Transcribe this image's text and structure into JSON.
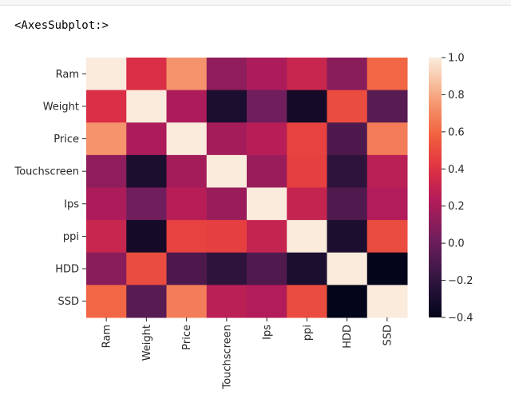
{
  "cell_output": "<AxesSubplot:>",
  "chart_data": {
    "type": "heatmap",
    "labels": [
      "Ram",
      "Weight",
      "Price",
      "Touchscreen",
      "Ips",
      "ppi",
      "HDD",
      "SSD"
    ],
    "matrix": [
      [
        1.0,
        0.38,
        0.74,
        0.12,
        0.21,
        0.31,
        0.1,
        0.6
      ],
      [
        0.38,
        1.0,
        0.21,
        -0.29,
        0.02,
        -0.32,
        0.51,
        -0.06
      ],
      [
        0.74,
        0.21,
        1.0,
        0.19,
        0.25,
        0.47,
        -0.1,
        0.67
      ],
      [
        0.12,
        -0.29,
        0.19,
        1.0,
        0.15,
        0.46,
        -0.21,
        0.26
      ],
      [
        0.21,
        0.02,
        0.25,
        0.15,
        1.0,
        0.3,
        -0.09,
        0.23
      ],
      [
        0.31,
        -0.32,
        0.47,
        0.46,
        0.3,
        1.0,
        -0.29,
        0.51
      ],
      [
        0.1,
        0.51,
        -0.1,
        -0.21,
        -0.09,
        -0.29,
        1.0,
        -0.4
      ],
      [
        0.6,
        -0.06,
        0.67,
        0.26,
        0.23,
        0.51,
        -0.4,
        1.0
      ]
    ],
    "colorbar": {
      "min": -0.4,
      "max": 1.0,
      "ticks": [
        1.0,
        0.8,
        0.6,
        0.4,
        0.2,
        0.0,
        -0.2,
        -0.4
      ],
      "tick_labels": [
        "1.0",
        "0.8",
        "0.6",
        "0.4",
        "0.2",
        "0.0",
        "−0.2",
        "−0.4"
      ],
      "colormap": "rocket"
    },
    "title": "",
    "xlabel": "",
    "ylabel": ""
  }
}
